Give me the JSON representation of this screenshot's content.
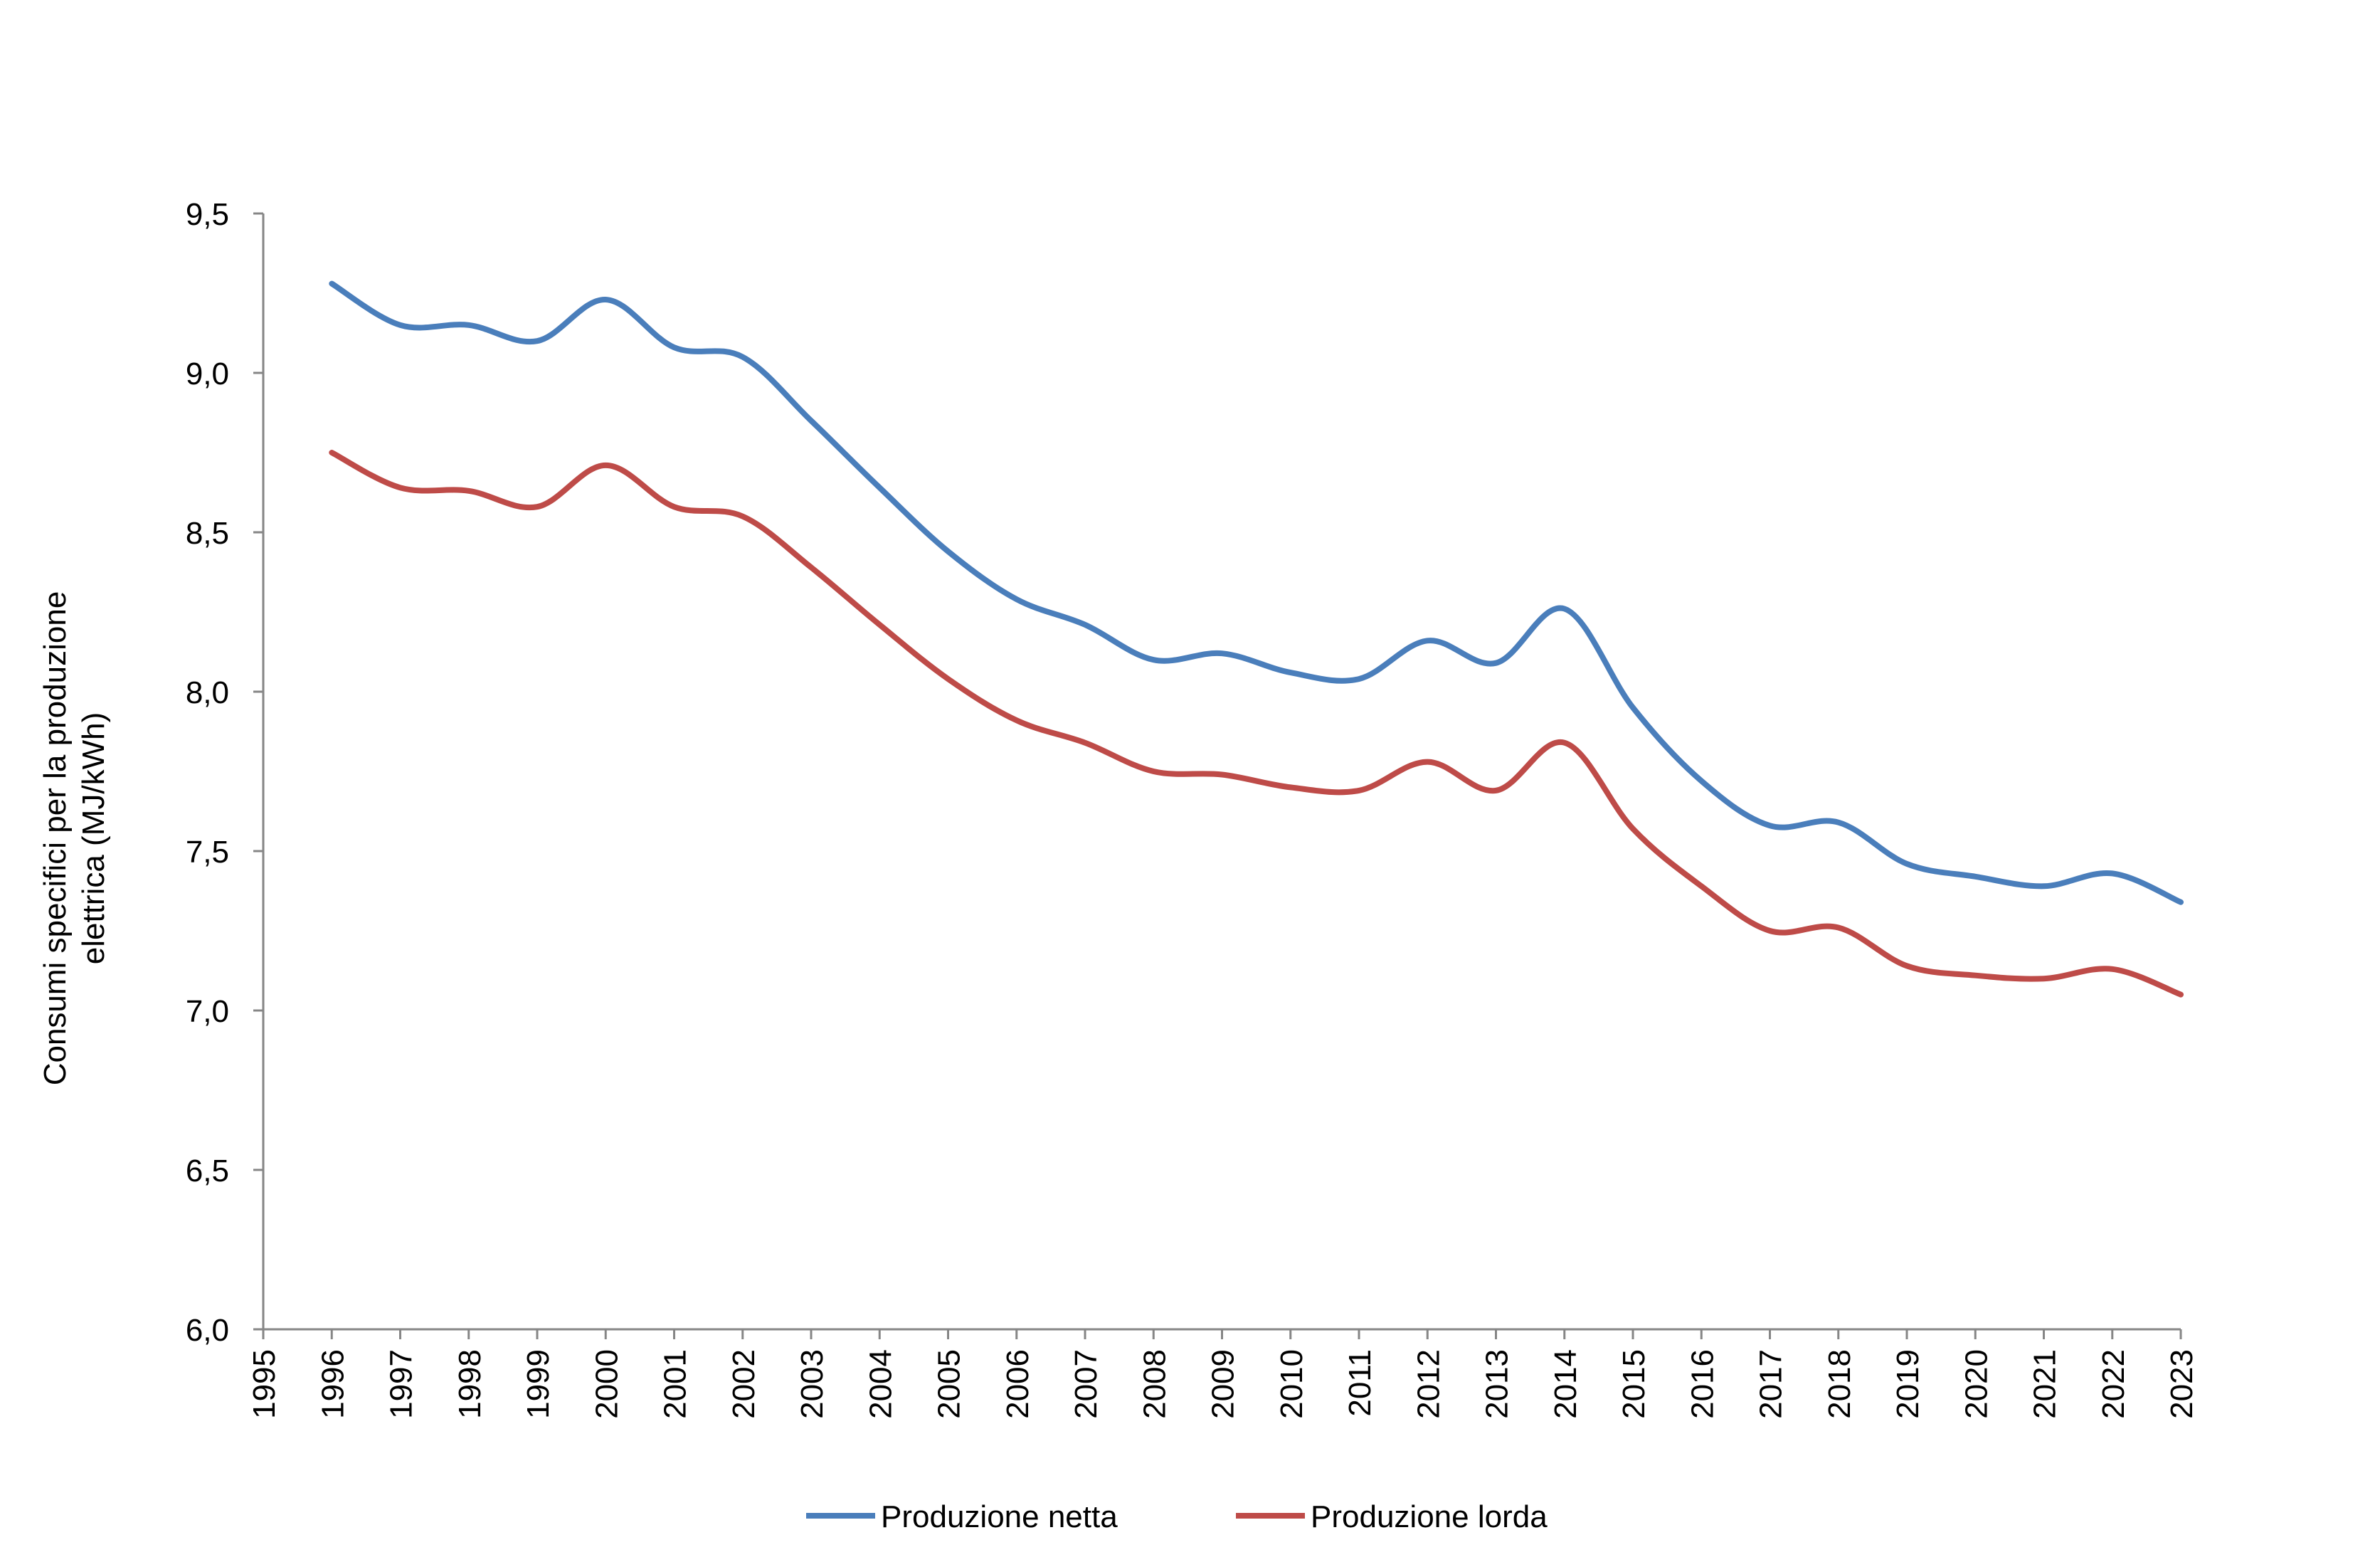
{
  "chart_data": {
    "type": "line",
    "ylabel_lines": [
      "Consumi specifici per la produzione",
      "elettrica (MJ/kWh)"
    ],
    "xlabel": "",
    "x_ticks": [
      "1995",
      "1996",
      "1997",
      "1998",
      "1999",
      "2000",
      "2001",
      "2002",
      "2003",
      "2004",
      "2005",
      "2006",
      "2007",
      "2008",
      "2009",
      "2010",
      "2011",
      "2012",
      "2013",
      "2014",
      "2015",
      "2016",
      "2017",
      "2018",
      "2019",
      "2020",
      "2021",
      "2022",
      "2023"
    ],
    "y_ticks": [
      "6,0",
      "6,5",
      "7,0",
      "7,5",
      "8,0",
      "8,5",
      "9,0",
      "9,5"
    ],
    "ylim": [
      6.0,
      9.5
    ],
    "grid": false,
    "legend_position": "bottom",
    "x": [
      "1996",
      "1997",
      "1998",
      "1999",
      "2000",
      "2001",
      "2002",
      "2003",
      "2004",
      "2005",
      "2006",
      "2007",
      "2008",
      "2009",
      "2010",
      "2011",
      "2012",
      "2013",
      "2014",
      "2015",
      "2016",
      "2017",
      "2018",
      "2019",
      "2020",
      "2021",
      "2022",
      "2023"
    ],
    "series": [
      {
        "name": "Produzione netta",
        "color": "#4a7ebb",
        "values": [
          9.28,
          9.15,
          9.15,
          9.1,
          9.23,
          9.08,
          9.05,
          8.85,
          8.64,
          8.44,
          8.29,
          8.21,
          8.1,
          8.12,
          8.06,
          8.04,
          8.16,
          8.09,
          8.26,
          7.95,
          7.72,
          7.58,
          7.59,
          7.46,
          7.42,
          7.39,
          7.43,
          7.34
        ]
      },
      {
        "name": "Produzione lorda",
        "color": "#be4b48",
        "values": [
          8.75,
          8.64,
          8.63,
          8.58,
          8.71,
          8.58,
          8.55,
          8.39,
          8.21,
          8.04,
          7.91,
          7.84,
          7.75,
          7.74,
          7.7,
          7.69,
          7.78,
          7.69,
          7.84,
          7.57,
          7.39,
          7.25,
          7.26,
          7.14,
          7.11,
          7.1,
          7.13,
          7.05
        ]
      }
    ]
  }
}
